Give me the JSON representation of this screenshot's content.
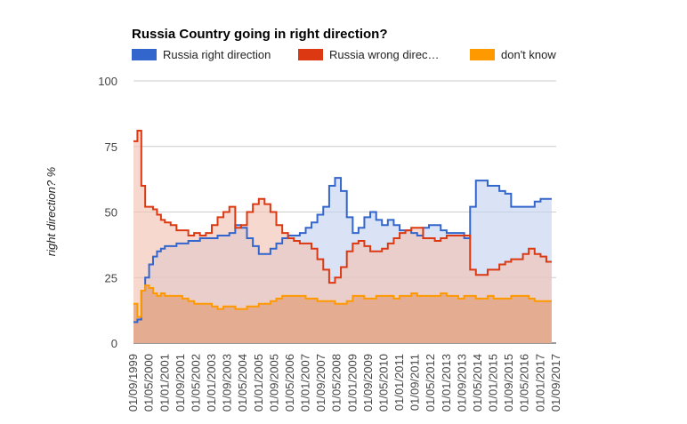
{
  "chart_data": {
    "type": "area",
    "title": "Russia Country going in right direction?",
    "ylabel": "right direction? %",
    "xlabel": "",
    "ylim": [
      0,
      100
    ],
    "yticks": [
      0,
      25,
      50,
      75,
      100
    ],
    "legend_position": "top",
    "grid": true,
    "xlim": [
      "1999-09-01",
      "2017-09-01"
    ],
    "x_tick_labels": [
      "01/09/1999",
      "01/05/2000",
      "01/01/2001",
      "01/09/2001",
      "01/05/2002",
      "01/01/2003",
      "01/09/2003",
      "01/05/2004",
      "01/01/2005",
      "01/09/2005",
      "01/05/2006",
      "01/01/2007",
      "01/09/2007",
      "01/05/2008",
      "01/01/2009",
      "01/09/2009",
      "01/05/2010",
      "01/01/2011",
      "01/09/2011",
      "01/05/2012",
      "01/01/2013",
      "01/09/2013",
      "01/05/2014",
      "01/01/2015",
      "01/09/2015",
      "01/05/2016",
      "01/01/2017",
      "01/09/2017"
    ],
    "x": [
      "1999-09-01",
      "1999-11-01",
      "2000-01-01",
      "2000-03-01",
      "2000-05-01",
      "2000-07-01",
      "2000-09-01",
      "2000-11-01",
      "2001-01-01",
      "2001-04-01",
      "2001-07-01",
      "2001-10-01",
      "2002-01-01",
      "2002-04-01",
      "2002-07-01",
      "2002-10-01",
      "2003-01-01",
      "2003-04-01",
      "2003-07-01",
      "2003-10-01",
      "2004-01-01",
      "2004-04-01",
      "2004-07-01",
      "2004-10-01",
      "2005-01-01",
      "2005-04-01",
      "2005-07-01",
      "2005-10-01",
      "2006-01-01",
      "2006-04-01",
      "2006-07-01",
      "2006-10-01",
      "2007-01-01",
      "2007-04-01",
      "2007-07-01",
      "2007-10-01",
      "2008-01-01",
      "2008-04-01",
      "2008-07-01",
      "2008-10-01",
      "2009-01-01",
      "2009-04-01",
      "2009-07-01",
      "2009-10-01",
      "2010-01-01",
      "2010-04-01",
      "2010-07-01",
      "2010-10-01",
      "2011-01-01",
      "2011-04-01",
      "2011-07-01",
      "2011-10-01",
      "2012-01-01",
      "2012-04-01",
      "2012-07-01",
      "2012-10-01",
      "2013-01-01",
      "2013-04-01",
      "2013-07-01",
      "2013-10-01",
      "2014-01-01",
      "2014-04-01",
      "2014-07-01",
      "2014-10-01",
      "2015-01-01",
      "2015-04-01",
      "2015-07-01",
      "2015-10-01",
      "2016-01-01",
      "2016-04-01",
      "2016-07-01",
      "2016-10-01",
      "2017-01-01",
      "2017-04-01"
    ],
    "series": [
      {
        "name": "Russia right direction",
        "color": "#3366cc",
        "fill": "#c6d4f0",
        "values": [
          8,
          9,
          20,
          25,
          30,
          33,
          35,
          36,
          37,
          37,
          38,
          38,
          39,
          39,
          40,
          40,
          40,
          41,
          41,
          42,
          45,
          44,
          40,
          37,
          34,
          34,
          36,
          38,
          40,
          41,
          41,
          42,
          44,
          46,
          49,
          52,
          60,
          63,
          58,
          48,
          42,
          44,
          48,
          50,
          47,
          45,
          47,
          45,
          43,
          43,
          42,
          41,
          44,
          45,
          45,
          43,
          42,
          42,
          42,
          40,
          52,
          62,
          62,
          60,
          60,
          58,
          57,
          52,
          52,
          52,
          52,
          54,
          55,
          55
        ]
      },
      {
        "name": "Russia wrong direc…",
        "color": "#dc3912",
        "fill": "#f3c3b5",
        "values": [
          77,
          81,
          60,
          52,
          52,
          51,
          49,
          47,
          46,
          45,
          43,
          43,
          41,
          42,
          41,
          42,
          45,
          48,
          50,
          52,
          44,
          45,
          50,
          53,
          55,
          53,
          50,
          45,
          42,
          40,
          39,
          38,
          38,
          36,
          32,
          28,
          23,
          25,
          29,
          35,
          38,
          39,
          37,
          35,
          35,
          36,
          38,
          40,
          42,
          43,
          44,
          44,
          40,
          40,
          39,
          40,
          41,
          41,
          41,
          41,
          28,
          26,
          26,
          28,
          28,
          30,
          31,
          32,
          32,
          34,
          36,
          34,
          33,
          31
        ]
      },
      {
        "name": "don't know",
        "color": "#ff9900",
        "fill": "#e3a786",
        "values": [
          15,
          10,
          20,
          22,
          21,
          19,
          18,
          19,
          18,
          18,
          18,
          17,
          16,
          15,
          15,
          15,
          14,
          13,
          14,
          14,
          13,
          13,
          14,
          14,
          15,
          15,
          16,
          17,
          18,
          18,
          18,
          18,
          17,
          17,
          16,
          16,
          16,
          15,
          15,
          16,
          18,
          18,
          17,
          17,
          18,
          18,
          18,
          17,
          18,
          18,
          19,
          18,
          18,
          18,
          18,
          19,
          18,
          18,
          17,
          18,
          18,
          17,
          17,
          18,
          17,
          17,
          17,
          18,
          18,
          18,
          17,
          16,
          16,
          16
        ]
      }
    ]
  }
}
